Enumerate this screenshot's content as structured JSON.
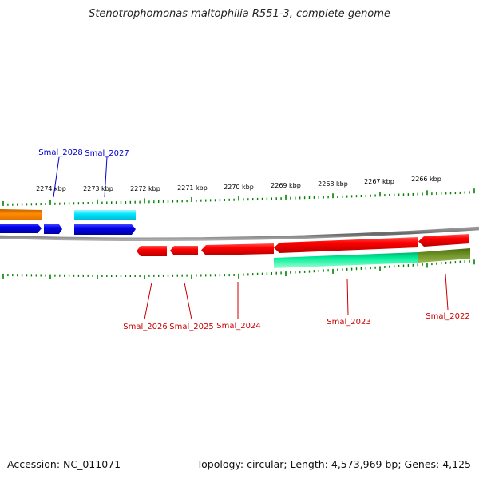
{
  "title": "Stenotrophomonas maltophilia R551-3, complete genome",
  "footer": {
    "accession": "Accession: NC_011071",
    "topology": "Topology: circular; Length: 4,573,969 bp; Genes: 4,125"
  },
  "kbp_labels": [
    "2274 kbp",
    "2273 kbp",
    "2272 kbp",
    "2271 kbp",
    "2270 kbp",
    "2269 kbp",
    "2268 kbp",
    "2267 kbp",
    "2266 kbp"
  ],
  "genes": [
    {
      "label": "Smal_2028",
      "strand": "+",
      "color": "#0000ee"
    },
    {
      "label": "Smal_2027",
      "strand": "+",
      "color": "#0000ee"
    },
    {
      "label": "Smal_2026",
      "strand": "-",
      "color": "#ff0000"
    },
    {
      "label": "Smal_2025",
      "strand": "-",
      "color": "#ff0000"
    },
    {
      "label": "Smal_2024",
      "strand": "-",
      "color": "#ff0000"
    },
    {
      "label": "Smal_2023",
      "strand": "-",
      "color": "#ff0000"
    },
    {
      "label": "Smal_2022",
      "strand": "-",
      "color": "#ff0000"
    }
  ],
  "colors": {
    "plus_strand_gene": "#0000ee",
    "minus_strand_gene": "#ff0000",
    "plus_strand_feature_orange": "#ff8c00",
    "plus_strand_feature_cyan": "#00e5ff",
    "minus_strand_feature_green": "#00ee99",
    "minus_strand_feature_olive": "#6b8e23",
    "ticks": "#008000",
    "backbone": "#777777"
  }
}
